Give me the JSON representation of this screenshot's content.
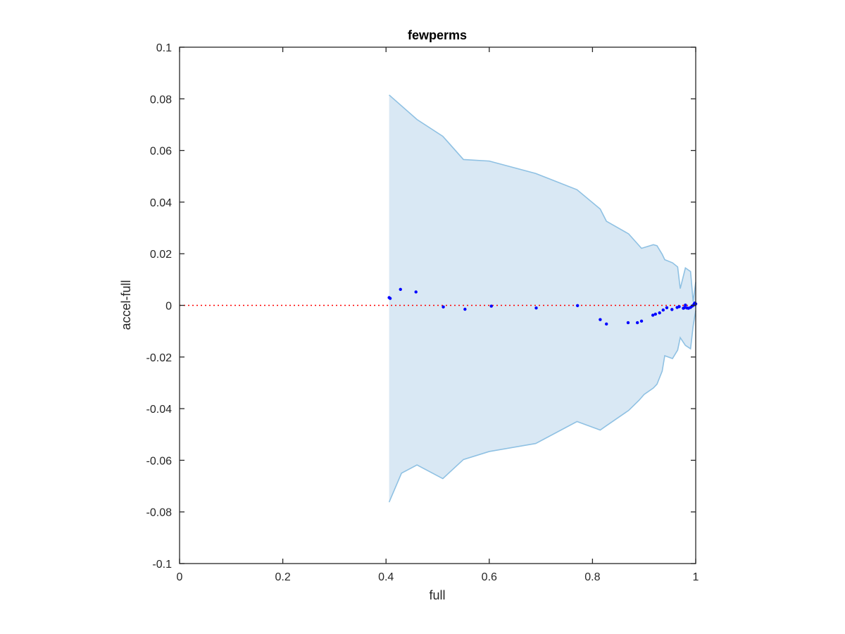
{
  "chart_data": {
    "type": "scatter",
    "title": "fewperms",
    "xlabel": "full",
    "ylabel": "accel-full",
    "xlim": [
      0,
      1
    ],
    "ylim": [
      -0.1,
      0.1
    ],
    "x_ticks": [
      0,
      0.2,
      0.4,
      0.6,
      0.8,
      1
    ],
    "x_tick_labels": [
      "0",
      "0.2",
      "0.4",
      "0.6",
      "0.8",
      "1"
    ],
    "y_ticks": [
      0.1,
      0.08,
      0.06,
      0.04,
      0.02,
      0,
      -0.02,
      -0.04,
      -0.06,
      -0.08,
      -0.1
    ],
    "y_tick_labels": [
      "0.1",
      "0.08",
      "0.06",
      "0.04",
      "0.02",
      "0",
      "-0.02",
      "-0.04",
      "-0.06",
      "-0.08",
      "-0.1"
    ],
    "grid": false,
    "reference_line": {
      "y": 0,
      "style": "dotted",
      "color": "#ff0000"
    },
    "band": {
      "upper": [
        [
          0.406,
          0.0815
        ],
        [
          0.46,
          0.072
        ],
        [
          0.51,
          0.0655
        ],
        [
          0.55,
          0.0565
        ],
        [
          0.6,
          0.0559
        ],
        [
          0.69,
          0.0511
        ],
        [
          0.77,
          0.0448
        ],
        [
          0.815,
          0.0373
        ],
        [
          0.827,
          0.0326
        ],
        [
          0.87,
          0.0277
        ],
        [
          0.895,
          0.0221
        ],
        [
          0.918,
          0.0235
        ],
        [
          0.925,
          0.0231
        ],
        [
          0.935,
          0.0198
        ],
        [
          0.94,
          0.0177
        ],
        [
          0.955,
          0.0165
        ],
        [
          0.965,
          0.0149
        ],
        [
          0.97,
          0.0065
        ],
        [
          0.98,
          0.0145
        ],
        [
          0.99,
          0.0131
        ],
        [
          0.995,
          0.0015
        ],
        [
          1.0,
          0.009
        ]
      ],
      "lower": [
        [
          0.406,
          -0.0762
        ],
        [
          0.43,
          -0.065
        ],
        [
          0.46,
          -0.0618
        ],
        [
          0.51,
          -0.0671
        ],
        [
          0.55,
          -0.0597
        ],
        [
          0.6,
          -0.0566
        ],
        [
          0.69,
          -0.0535
        ],
        [
          0.77,
          -0.045
        ],
        [
          0.815,
          -0.0483
        ],
        [
          0.827,
          -0.0466
        ],
        [
          0.87,
          -0.0407
        ],
        [
          0.89,
          -0.0368
        ],
        [
          0.9,
          -0.0345
        ],
        [
          0.918,
          -0.032
        ],
        [
          0.925,
          -0.0305
        ],
        [
          0.935,
          -0.0255
        ],
        [
          0.94,
          -0.0195
        ],
        [
          0.955,
          -0.0206
        ],
        [
          0.965,
          -0.0173
        ],
        [
          0.97,
          -0.0125
        ],
        [
          0.98,
          -0.0155
        ],
        [
          0.99,
          -0.0168
        ],
        [
          0.995,
          -0.008
        ],
        [
          1.0,
          -0.002
        ]
      ],
      "fill_color": "#d9e8f4",
      "line_color": "#8fc1e3"
    },
    "series": [
      {
        "color": "#0000ff",
        "points": [
          [
            0.406,
            0.003
          ],
          [
            0.408,
            0.0027
          ],
          [
            0.428,
            0.0062
          ],
          [
            0.458,
            0.0052
          ],
          [
            0.511,
            -0.0006
          ],
          [
            0.553,
            -0.0015
          ],
          [
            0.604,
            -0.0003
          ],
          [
            0.691,
            -0.001
          ],
          [
            0.771,
            -0.0001
          ],
          [
            0.815,
            -0.0055
          ],
          [
            0.827,
            -0.0072
          ],
          [
            0.869,
            -0.0067
          ],
          [
            0.887,
            -0.0067
          ],
          [
            0.895,
            -0.0061
          ],
          [
            0.917,
            -0.0038
          ],
          [
            0.922,
            -0.0034
          ],
          [
            0.93,
            -0.0029
          ],
          [
            0.937,
            -0.0018
          ],
          [
            0.944,
            -0.0009
          ],
          [
            0.954,
            -0.0016
          ],
          [
            0.964,
            -0.0008
          ],
          [
            0.968,
            -0.0005
          ],
          [
            0.976,
            -0.0011
          ],
          [
            0.978,
            -0.0009
          ],
          [
            0.98,
            0.0001
          ],
          [
            0.983,
            -0.001
          ],
          [
            0.986,
            -0.0011
          ],
          [
            0.99,
            -0.0008
          ],
          [
            0.993,
            -0.0003
          ],
          [
            0.995,
            0.0
          ],
          [
            0.997,
            0.0005
          ],
          [
            0.998,
            0.0009
          ],
          [
            0.999,
            0.0003
          ],
          [
            1.0,
            0.0006
          ]
        ]
      }
    ]
  }
}
